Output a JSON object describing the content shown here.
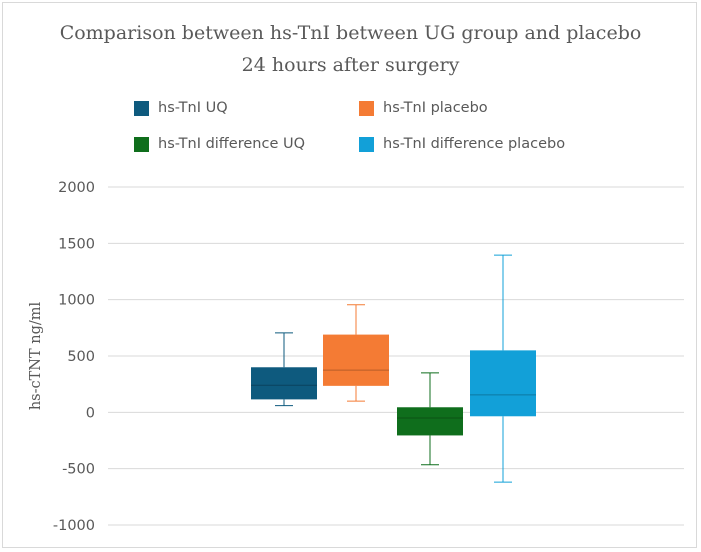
{
  "chart_data": {
    "type": "box",
    "title": "Comparison between hs-TnI between UG group and placebo",
    "subtitle": "24 hours after surgery",
    "ylabel": "hs-cTNT ng/ml",
    "xlabel": "",
    "ylim": [
      -1000,
      2000
    ],
    "yticks": [
      2000,
      1500,
      1000,
      500,
      0,
      -500,
      -1000
    ],
    "grid": true,
    "legend_position": "top",
    "series": [
      {
        "name": "hs-TnI UQ",
        "color": "#0e5a7e",
        "min": 60,
        "q1": 115,
        "median": 240,
        "q3": 400,
        "max": 705
      },
      {
        "name": "hs-TnI placebo",
        "color": "#f47b34",
        "min": 100,
        "q1": 235,
        "median": 375,
        "q3": 690,
        "max": 955
      },
      {
        "name": "hs-TnI difference UQ",
        "color": "#0f6e1c",
        "min": -465,
        "q1": -205,
        "median": -50,
        "q3": 45,
        "max": 350
      },
      {
        "name": "hs-TnI difference placebo",
        "color": "#12a0d8",
        "min": -620,
        "q1": -35,
        "median": 155,
        "q3": 550,
        "max": 1395
      }
    ]
  }
}
